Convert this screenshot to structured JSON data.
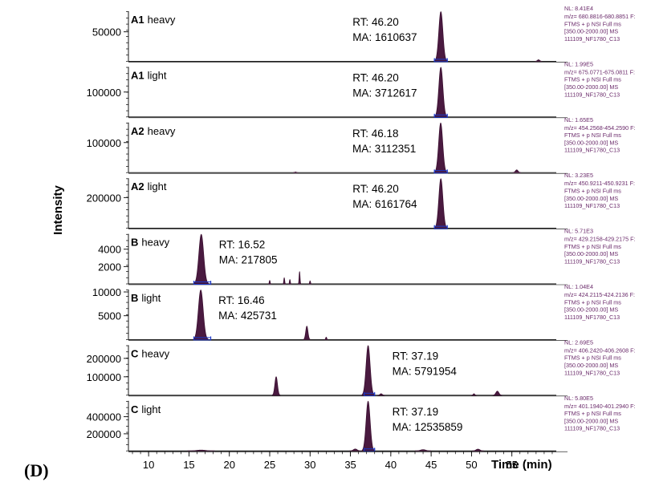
{
  "panel_label": "(D)",
  "colors": {
    "peak": "#3a0f30",
    "peak_fill": "#4a1a40",
    "integration": "#1a37c8",
    "side_text": "#6a2a6a"
  },
  "chart_data": {
    "type": "line",
    "ylabel": "Intensity",
    "xlabel": "Time (min)",
    "xlim": [
      7.5,
      60.5
    ],
    "xticks": [
      10,
      15,
      20,
      25,
      30,
      35,
      40,
      45,
      50,
      55
    ],
    "panels": [
      {
        "compound": "A1",
        "label": "heavy",
        "rt_text": "RT: 46.20",
        "ma_text": "MA: 1610637",
        "nl": "NL: 8.41E4",
        "filter": [
          "m/z= 680.8816-680.8851 F:",
          "FTMS + p NSI Full ms",
          "[350.00-2000.00] MS",
          "111109_NF1780_C13"
        ],
        "yticks": [
          50000
        ],
        "ylim": [
          0,
          84100
        ],
        "peaks": [
          {
            "rt": 46.2,
            "height": 84100,
            "width": 0.55
          },
          {
            "rt": 58.3,
            "height": 2500,
            "width": 0.3
          }
        ],
        "integrated": [
          45.4,
          47.0
        ]
      },
      {
        "compound": "A1",
        "label": "light",
        "rt_text": "RT: 46.20",
        "ma_text": "MA: 3712617",
        "nl": "NL: 1.99E5",
        "filter": [
          "m/z= 675.0771-675.0811 F:",
          "FTMS + p NSI Full ms",
          "[350.00-2000.00] MS",
          "111109_NF1780_C13"
        ],
        "yticks": [
          100000
        ],
        "ylim": [
          0,
          199000
        ],
        "peaks": [
          {
            "rt": 46.2,
            "height": 199000,
            "width": 0.55
          }
        ],
        "integrated": [
          45.4,
          47.0
        ]
      },
      {
        "compound": "A2",
        "label": "heavy",
        "rt_text": "RT: 46.18",
        "ma_text": "MA: 3112351",
        "nl": "NL: 1.65E5",
        "filter": [
          "m/z= 454.2568-454.2590 F:",
          "FTMS + p NSI Full ms",
          "[350.00-2000.00] MS",
          "111109_NF1780_C13"
        ],
        "yticks": [
          100000
        ],
        "ylim": [
          0,
          165000
        ],
        "peaks": [
          {
            "rt": 46.18,
            "height": 165000,
            "width": 0.55
          },
          {
            "rt": 55.6,
            "height": 9000,
            "width": 0.35
          },
          {
            "rt": 28.2,
            "height": 2000,
            "width": 0.2
          }
        ],
        "integrated": [
          45.4,
          47.0
        ]
      },
      {
        "compound": "A2",
        "label": "light",
        "rt_text": "RT: 46.20",
        "ma_text": "MA: 6161764",
        "nl": "NL: 3.23E5",
        "filter": [
          "m/z= 450.9211-450.9231 F:",
          "FTMS + p NSI Full ms",
          "[350.00-2000.00] MS",
          "111109_NF1780_C13"
        ],
        "yticks": [
          200000
        ],
        "ylim": [
          0,
          323000
        ],
        "peaks": [
          {
            "rt": 46.2,
            "height": 323000,
            "width": 0.55
          }
        ],
        "integrated": [
          45.4,
          47.0
        ]
      },
      {
        "compound": "B",
        "label": "heavy",
        "rt_text": "RT: 16.52",
        "ma_text": "MA: 217805",
        "nl": "NL: 5.71E3",
        "filter": [
          "m/z= 429.2158-429.2175 F:",
          "FTMS + p NSI Full ms",
          "[350.00-2000.00] MS",
          "111109_NF1780_C13"
        ],
        "yticks": [
          4000,
          2000
        ],
        "ylim": [
          0,
          5710
        ],
        "peaks": [
          {
            "rt": 16.52,
            "height": 5710,
            "width": 0.65
          },
          {
            "rt": 28.7,
            "height": 1400,
            "width": 0.12
          },
          {
            "rt": 26.8,
            "height": 700,
            "width": 0.12
          },
          {
            "rt": 27.5,
            "height": 500,
            "width": 0.12
          },
          {
            "rt": 25.0,
            "height": 400,
            "width": 0.12
          },
          {
            "rt": 30.0,
            "height": 350,
            "width": 0.12
          }
        ],
        "integrated": [
          15.6,
          17.7
        ]
      },
      {
        "compound": "B",
        "label": "light",
        "rt_text": "RT: 16.46",
        "ma_text": "MA: 425731",
        "nl": "NL: 1.04E4",
        "filter": [
          "m/z= 424.2115-424.2136 F:",
          "FTMS + p NSI Full ms",
          "[350.00-2000.00] MS",
          "111109_NF1780_C13"
        ],
        "yticks": [
          10000,
          5000
        ],
        "ylim": [
          0,
          10400
        ],
        "peaks": [
          {
            "rt": 16.46,
            "height": 10400,
            "width": 0.65
          },
          {
            "rt": 29.6,
            "height": 2800,
            "width": 0.3
          },
          {
            "rt": 32.0,
            "height": 500,
            "width": 0.15
          }
        ],
        "integrated": [
          15.6,
          17.7
        ]
      },
      {
        "compound": "C",
        "label": "heavy",
        "rt_text": "RT: 37.19",
        "ma_text": "MA: 5791954",
        "nl": "NL: 2.69E5",
        "filter": [
          "m/z= 406.2420-406.2608 F:",
          "FTMS + p NSI Full ms",
          "[350.00-2000.00] MS",
          "111109_NF1780_C13"
        ],
        "yticks": [
          200000,
          100000
        ],
        "ylim": [
          0,
          269000
        ],
        "peaks": [
          {
            "rt": 37.19,
            "height": 269000,
            "width": 0.55
          },
          {
            "rt": 25.8,
            "height": 100000,
            "width": 0.35
          },
          {
            "rt": 53.2,
            "height": 22000,
            "width": 0.4
          },
          {
            "rt": 38.8,
            "height": 8000,
            "width": 0.3
          },
          {
            "rt": 50.3,
            "height": 8000,
            "width": 0.2
          }
        ],
        "integrated": [
          36.7,
          38.0
        ]
      },
      {
        "compound": "C",
        "label": "light",
        "rt_text": "RT: 37.19",
        "ma_text": "MA: 12535859",
        "nl": "NL: 5.80E5",
        "filter": [
          "m/z= 401.1940-401.2940 F:",
          "FTMS + p NSI Full ms",
          "[350.00-2000.00] MS",
          "111109_NF1780_C13"
        ],
        "yticks": [
          400000,
          200000
        ],
        "ylim": [
          0,
          580000
        ],
        "peaks": [
          {
            "rt": 37.19,
            "height": 580000,
            "width": 0.55
          },
          {
            "rt": 35.6,
            "height": 22000,
            "width": 0.5
          },
          {
            "rt": 44.0,
            "height": 14000,
            "width": 0.7
          },
          {
            "rt": 50.8,
            "height": 20000,
            "width": 0.5
          },
          {
            "rt": 16.5,
            "height": 9000,
            "width": 1.2
          }
        ],
        "integrated": [
          36.7,
          38.0
        ]
      }
    ]
  }
}
